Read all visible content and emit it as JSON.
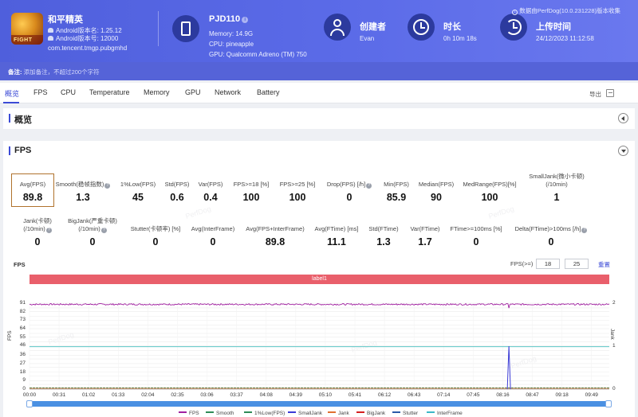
{
  "app": {
    "name": "和平精英",
    "android_version_label": "Android版本名: 1.25.12",
    "android_code_label": "Android版本号: 12000",
    "package": "com.tencent.tmgp.pubgmhd",
    "icon_text": "FIGHT"
  },
  "device": {
    "name": "PJD110",
    "memory": "Memory: 14.9G",
    "cpu": "CPU: pineapple",
    "gpu": "GPU: Qualcomm Adreno (TM) 750"
  },
  "creator": {
    "title": "创建者",
    "value": "Evan"
  },
  "duration": {
    "title": "时长",
    "value": "0h 10m 18s"
  },
  "upload": {
    "title": "上传时间",
    "value": "24/12/2023 11:12:58"
  },
  "collect_note": "数据由PerfDog(10.0.231228)版本收集",
  "note": {
    "label": "备注:",
    "placeholder": "添加备注，不超过200个字符"
  },
  "tabs": [
    "概览",
    "FPS",
    "CPU",
    "Temperature",
    "Memory",
    "GPU",
    "Network",
    "Battery"
  ],
  "export_label": "导出",
  "overview_title": "概览",
  "fps_title": "FPS",
  "metrics_row1": [
    {
      "label": "Avg(FPS)",
      "value": "89.8"
    },
    {
      "label": "Smooth(稳帧指数)",
      "value": "1.3",
      "help": true
    },
    {
      "label": "1%Low(FPS)",
      "value": "45"
    },
    {
      "label": "Std(FPS)",
      "value": "0.6"
    },
    {
      "label": "Var(FPS)",
      "value": "0.4"
    },
    {
      "label": "FPS>=18 [%]",
      "value": "100"
    },
    {
      "label": "FPS>=25 [%]",
      "value": "100"
    },
    {
      "label": "Drop(FPS) [/h]",
      "value": "0",
      "help": true
    },
    {
      "label": "Min(FPS)",
      "value": "85.9"
    },
    {
      "label": "Median(FPS)",
      "value": "90"
    },
    {
      "label": "MedRange(FPS)[%]",
      "value": "100"
    },
    {
      "label": "SmallJank(微小卡顿)",
      "label2": "(/10min)",
      "value": "1"
    }
  ],
  "metrics_row2": [
    {
      "label": "Jank(卡顿)",
      "label2": "(/10min)",
      "value": "0",
      "help": true
    },
    {
      "label": "BigJank(严重卡顿)",
      "label2": "(/10min)",
      "value": "0",
      "help": true
    },
    {
      "label": "Stutter(卡顿率) [%]",
      "value": "0"
    },
    {
      "label": "Avg(InterFrame)",
      "value": "0"
    },
    {
      "label": "Avg(FPS+InterFrame)",
      "value": "89.8"
    },
    {
      "label": "Avg(FTime) [ms]",
      "value": "11.1"
    },
    {
      "label": "Std(FTime)",
      "value": "1.3"
    },
    {
      "label": "Var(FTime)",
      "value": "1.7"
    },
    {
      "label": "FTime>=100ms [%]",
      "value": "0"
    },
    {
      "label": "Delta(FTime)>100ms [/h]",
      "value": "0",
      "help": true
    }
  ],
  "chart_controls": {
    "chart_label": "FPS",
    "threshold_label": "FPS(>=)",
    "threshold_1": "18",
    "threshold_2": "25",
    "reset": "重置",
    "band_label": "label1"
  },
  "watermark": "PerfDog",
  "chart_data": {
    "type": "line",
    "xlabel": "",
    "ylabel": "FPS",
    "y2label": "Jank",
    "ylim": [
      0,
      91
    ],
    "y2lim": [
      0,
      2
    ],
    "yticks": [
      0,
      5,
      9,
      14,
      18,
      23,
      27,
      32,
      36,
      41,
      46,
      50,
      55,
      59,
      64,
      68,
      73,
      77,
      82,
      86,
      91
    ],
    "y2ticks": [
      0,
      1,
      2
    ],
    "x_range_seconds": [
      0,
      618
    ],
    "xticks": [
      "00:00",
      "00:31",
      "01:02",
      "01:33",
      "02:04",
      "02:35",
      "03:06",
      "03:37",
      "04:08",
      "04:39",
      "05:10",
      "05:41",
      "06:12",
      "06:43",
      "07:14",
      "07:45",
      "08:16",
      "08:47",
      "09:18",
      "09:49"
    ],
    "grid": true,
    "series": [
      {
        "name": "FPS",
        "color": "#a020a0",
        "mean": 89.8,
        "min": 85.9,
        "max": 91
      },
      {
        "name": "Smooth",
        "color": "#2e8b57",
        "value": 1.3
      },
      {
        "name": "1%Low(FPS)",
        "color": "#2e8b57",
        "value": 45
      },
      {
        "name": "SmallJank",
        "color": "#3b3bd6",
        "events_seconds": [
          511
        ],
        "event_value": 1
      },
      {
        "name": "Jank",
        "color": "#e07030",
        "value": 0
      },
      {
        "name": "BigJank",
        "color": "#d42020",
        "value": 0
      },
      {
        "name": "Stutter",
        "color": "#2a5aa8",
        "value": 0
      },
      {
        "name": "InterFrame",
        "color": "#3bb8c8",
        "value": 0
      }
    ]
  }
}
